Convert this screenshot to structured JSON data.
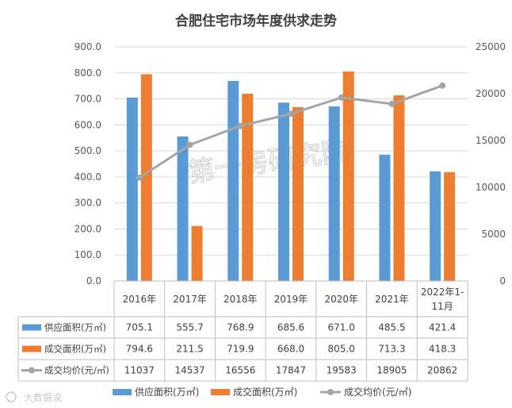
{
  "chart_data": {
    "type": "bar",
    "title": "合肥住宅市场年度供求走势",
    "categories": [
      "2016年",
      "2017年",
      "2018年",
      "2019年",
      "2020年",
      "2021年",
      "2022年1-11月"
    ],
    "category_lines": [
      [
        "2016年"
      ],
      [
        "2017年"
      ],
      [
        "2018年"
      ],
      [
        "2019年"
      ],
      [
        "2020年"
      ],
      [
        "2021年"
      ],
      [
        "2022年1-",
        "11月"
      ]
    ],
    "series": [
      {
        "name": "供应面积(万㎡)",
        "type": "bar",
        "axis": "left",
        "color": "#5B9BD5",
        "values": [
          705.1,
          555.7,
          768.9,
          685.6,
          671.0,
          485.5,
          421.4
        ],
        "labels": [
          "705.1",
          "555.7",
          "768.9",
          "685.6",
          "671.0",
          "485.5",
          "421.4"
        ]
      },
      {
        "name": "成交面积(万㎡)",
        "type": "bar",
        "axis": "left",
        "color": "#ED7D31",
        "values": [
          794.6,
          211.5,
          719.9,
          668.0,
          805.0,
          713.3,
          418.3
        ],
        "labels": [
          "794.6",
          "211.5",
          "719.9",
          "668.0",
          "805.0",
          "713.3",
          "418.3"
        ]
      },
      {
        "name": "成交均价(元/㎡)",
        "type": "line",
        "axis": "right",
        "color": "#A5A5A5",
        "values": [
          11037,
          14537,
          16556,
          17847,
          19583,
          18905,
          20862
        ],
        "labels": [
          "11037",
          "14537",
          "16556",
          "17847",
          "19583",
          "18905",
          "20862"
        ]
      }
    ],
    "y_left": {
      "min": 0,
      "max": 900,
      "step": 100,
      "ticks": [
        "0.0",
        "100.0",
        "200.0",
        "300.0",
        "400.0",
        "500.0",
        "600.0",
        "700.0",
        "800.0",
        "900.0"
      ]
    },
    "y_right": {
      "min": 0,
      "max": 25000,
      "step": 5000,
      "ticks": [
        "0",
        "5000",
        "10000",
        "15000",
        "20000",
        "25000"
      ]
    },
    "grid": true,
    "legend_position": "bottom",
    "watermark": "第一房研究院",
    "source_mark": "大数据说"
  }
}
